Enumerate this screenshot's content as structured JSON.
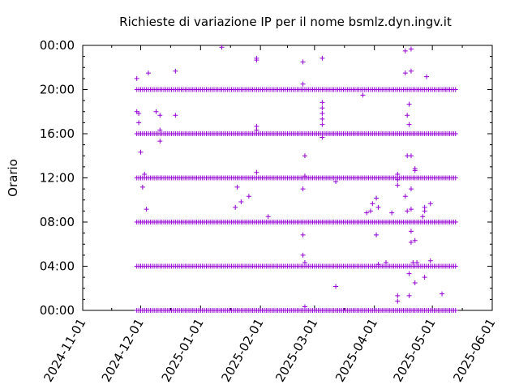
{
  "chart_data": {
    "type": "scatter",
    "title": "Richieste di variazione IP per il nome bsmlz.dyn.ingv.it",
    "xlabel": "",
    "ylabel": "Orario",
    "xlim": [
      "2024-11-01",
      "2025-06-01"
    ],
    "ylim": [
      "00:00",
      "24:00"
    ],
    "x_ticks": [
      "2024-11-01",
      "2024-12-01",
      "2025-01-01",
      "2025-02-01",
      "2025-03-01",
      "2025-04-01",
      "2025-05-01",
      "2025-06-01"
    ],
    "y_ticks": [
      "00:00",
      "04:00",
      "08:00",
      "12:00",
      "16:00",
      "20:00",
      "00:00"
    ],
    "grid": false,
    "legend": "none",
    "marker": "plus",
    "color": "#9400d3",
    "daily_band_hours": [
      0,
      4,
      8,
      12,
      16,
      20
    ],
    "daily_band_start": "2024-11-29",
    "daily_band_end": "2025-05-13",
    "points": [
      [
        "2024-11-29",
        "21:00"
      ],
      [
        "2024-11-29",
        "18:00"
      ],
      [
        "2024-11-30",
        "17:50"
      ],
      [
        "2024-11-30",
        "17:00"
      ],
      [
        "2024-12-01",
        "14:20"
      ],
      [
        "2024-12-02",
        "11:10"
      ],
      [
        "2024-12-03",
        "12:20"
      ],
      [
        "2024-12-04",
        "09:10"
      ],
      [
        "2024-12-05",
        "21:30"
      ],
      [
        "2024-12-09",
        "18:00"
      ],
      [
        "2024-12-11",
        "17:40"
      ],
      [
        "2024-12-11",
        "15:20"
      ],
      [
        "2024-12-11",
        "16:20"
      ],
      [
        "2024-12-19",
        "21:40"
      ],
      [
        "2024-12-19",
        "17:40"
      ],
      [
        "2025-01-12",
        "23:50"
      ],
      [
        "2025-01-19",
        "09:20"
      ],
      [
        "2025-01-20",
        "11:10"
      ],
      [
        "2025-01-22",
        "09:50"
      ],
      [
        "2025-01-26",
        "10:20"
      ],
      [
        "2025-01-30",
        "22:50"
      ],
      [
        "2025-01-30",
        "22:40"
      ],
      [
        "2025-01-30",
        "16:40"
      ],
      [
        "2025-01-30",
        "16:20"
      ],
      [
        "2025-01-30",
        "12:30"
      ],
      [
        "2025-02-05",
        "08:30"
      ],
      [
        "2025-02-23",
        "22:30"
      ],
      [
        "2025-02-23",
        "20:30"
      ],
      [
        "2025-02-24",
        "14:00"
      ],
      [
        "2025-02-24",
        "12:10"
      ],
      [
        "2025-02-23",
        "11:00"
      ],
      [
        "2025-02-23",
        "06:50"
      ],
      [
        "2025-02-23",
        "05:00"
      ],
      [
        "2025-02-24",
        "04:20"
      ],
      [
        "2025-02-24",
        "00:20"
      ],
      [
        "2025-03-05",
        "22:50"
      ],
      [
        "2025-03-05",
        "18:50"
      ],
      [
        "2025-03-05",
        "18:20"
      ],
      [
        "2025-03-05",
        "17:50"
      ],
      [
        "2025-03-05",
        "17:20"
      ],
      [
        "2025-03-05",
        "16:50"
      ],
      [
        "2025-03-05",
        "15:40"
      ],
      [
        "2025-03-12",
        "02:10"
      ],
      [
        "2025-03-12",
        "11:40"
      ],
      [
        "2025-03-26",
        "19:30"
      ],
      [
        "2025-03-28",
        "08:50"
      ],
      [
        "2025-03-30",
        "09:00"
      ],
      [
        "2025-03-31",
        "09:40"
      ],
      [
        "2025-04-02",
        "10:10"
      ],
      [
        "2025-04-03",
        "09:20"
      ],
      [
        "2025-04-02",
        "06:50"
      ],
      [
        "2025-04-03",
        "04:10"
      ],
      [
        "2025-04-07",
        "04:20"
      ],
      [
        "2025-04-10",
        "08:50"
      ],
      [
        "2025-04-13",
        "12:20"
      ],
      [
        "2025-04-13",
        "11:50"
      ],
      [
        "2025-04-13",
        "11:20"
      ],
      [
        "2025-04-13",
        "01:20"
      ],
      [
        "2025-04-13",
        "00:50"
      ],
      [
        "2025-04-17",
        "21:30"
      ],
      [
        "2025-04-17",
        "23:30"
      ],
      [
        "2025-04-17",
        "10:20"
      ],
      [
        "2025-04-18",
        "09:00"
      ],
      [
        "2025-04-18",
        "14:00"
      ],
      [
        "2025-04-18",
        "17:40"
      ],
      [
        "2025-04-19",
        "18:40"
      ],
      [
        "2025-04-19",
        "16:50"
      ],
      [
        "2025-04-20",
        "21:40"
      ],
      [
        "2025-04-20",
        "23:40"
      ],
      [
        "2025-04-20",
        "14:00"
      ],
      [
        "2025-04-20",
        "11:00"
      ],
      [
        "2025-04-20",
        "09:10"
      ],
      [
        "2025-04-20",
        "07:10"
      ],
      [
        "2025-04-20",
        "06:10"
      ],
      [
        "2025-04-21",
        "04:20"
      ],
      [
        "2025-04-19",
        "03:20"
      ],
      [
        "2025-04-19",
        "01:20"
      ],
      [
        "2025-04-22",
        "12:50"
      ],
      [
        "2025-04-22",
        "12:40"
      ],
      [
        "2025-04-22",
        "06:20"
      ],
      [
        "2025-04-23",
        "04:20"
      ],
      [
        "2025-04-22",
        "02:30"
      ],
      [
        "2025-04-26",
        "08:30"
      ],
      [
        "2025-04-27",
        "09:00"
      ],
      [
        "2025-04-27",
        "09:20"
      ],
      [
        "2025-04-27",
        "03:00"
      ],
      [
        "2025-04-28",
        "21:10"
      ],
      [
        "2025-04-30",
        "09:40"
      ],
      [
        "2025-04-30",
        "04:30"
      ],
      [
        "2025-05-06",
        "01:30"
      ],
      [
        "2025-05-08",
        "20:00"
      ]
    ]
  }
}
